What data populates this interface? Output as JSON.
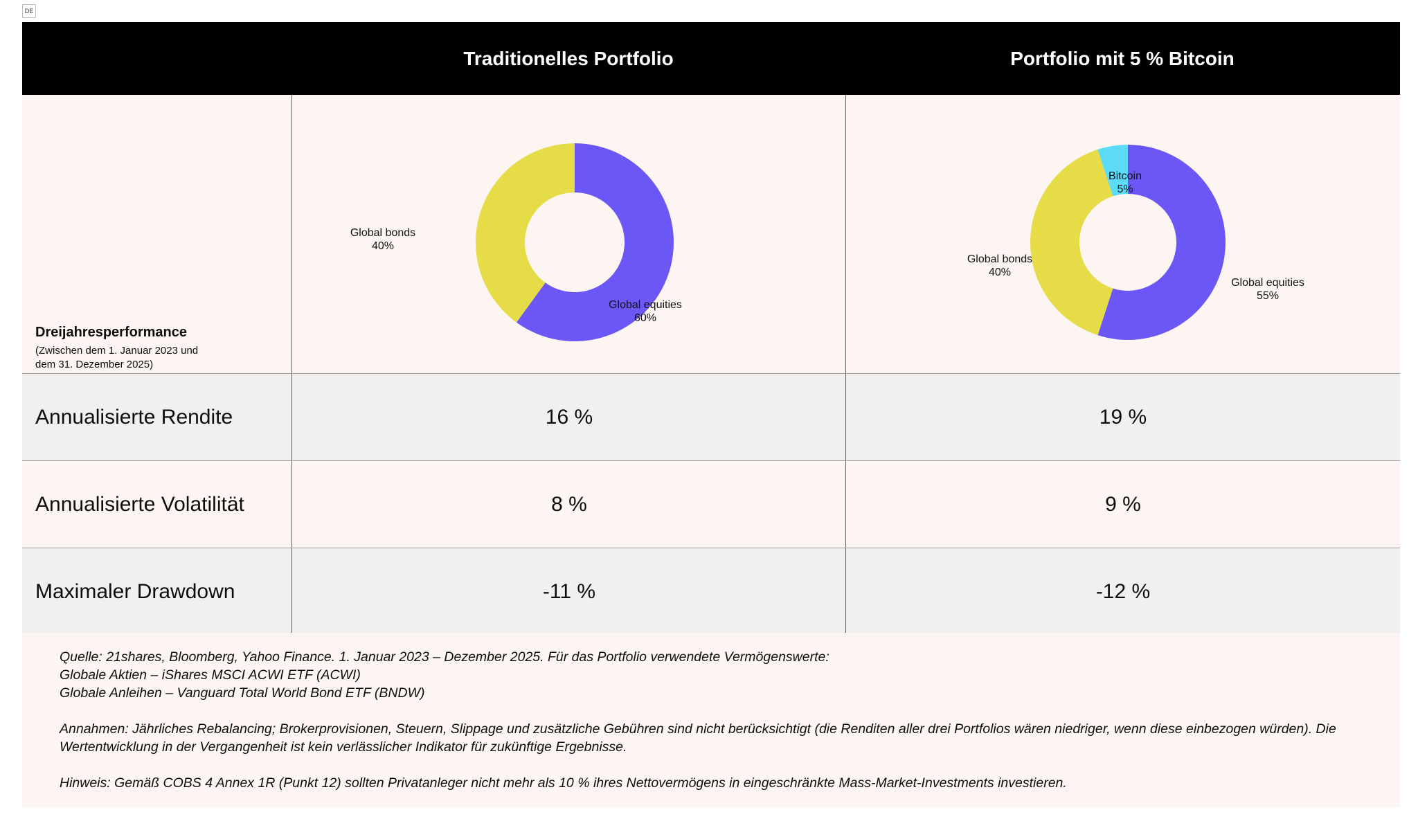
{
  "lang_badge": "DE",
  "header": {
    "col1_title": "Traditionelles Portfolio",
    "col2_title": "Portfolio mit 5 % Bitcoin"
  },
  "performance": {
    "title": "Dreijahresperformance",
    "subtitle_line1": "(Zwischen dem 1. Januar 2023 und",
    "subtitle_line2": "dem 31. Dezember 2025)"
  },
  "chart_data": [
    {
      "type": "pie",
      "donut": true,
      "title": "",
      "slices": [
        {
          "label": "Global equities",
          "value": 60,
          "value_label": "60%",
          "color": "#6b57f5"
        },
        {
          "label": "Global bonds",
          "value": 40,
          "value_label": "40%",
          "color": "#e5dc48"
        }
      ]
    },
    {
      "type": "pie",
      "donut": true,
      "title": "",
      "slices": [
        {
          "label": "Global equities",
          "value": 55,
          "value_label": "55%",
          "color": "#6b57f5"
        },
        {
          "label": "Global bonds",
          "value": 40,
          "value_label": "40%",
          "color": "#e5dc48"
        },
        {
          "label": "Bitcoin",
          "value": 5,
          "value_label": "5%",
          "color": "#5ddcf9"
        }
      ]
    }
  ],
  "metrics": [
    {
      "label": "Annualisierte Rendite",
      "traditional": "16 %",
      "bitcoin": "19 %"
    },
    {
      "label": "Annualisierte Volatilität",
      "traditional": "8 %",
      "bitcoin": "9 %"
    },
    {
      "label": "Maximaler Drawdown",
      "traditional": "-11 %",
      "bitcoin": "-12 %"
    }
  ],
  "notes": {
    "source_line1": "Quelle: 21shares, Bloomberg, Yahoo Finance. 1. Januar 2023 – Dezember 2025. Für das Portfolio verwendete Vermögenswerte:",
    "source_line2": "Globale Aktien – iShares MSCI ACWI ETF (ACWI)",
    "source_line3": "Globale Anleihen – Vanguard Total World Bond ETF (BNDW)",
    "assumptions": "Annahmen: Jährliches Rebalancing; Brokerprovisionen, Steuern, Slippage und zusätzliche Gebühren sind nicht berücksichtigt (die Renditen aller drei Portfolios wären niedriger, wenn diese einbezogen würden). Die Wertentwicklung in der Vergangenheit ist kein verlässlicher Indikator für zukünftige Ergebnisse.",
    "hint": "Hinweis: Gemäß COBS 4 Annex 1R (Punkt 12) sollten Privatanleger nicht mehr als 10 % ihres Nettovermögens in eingeschränkte Mass-Market-Investments investieren."
  }
}
